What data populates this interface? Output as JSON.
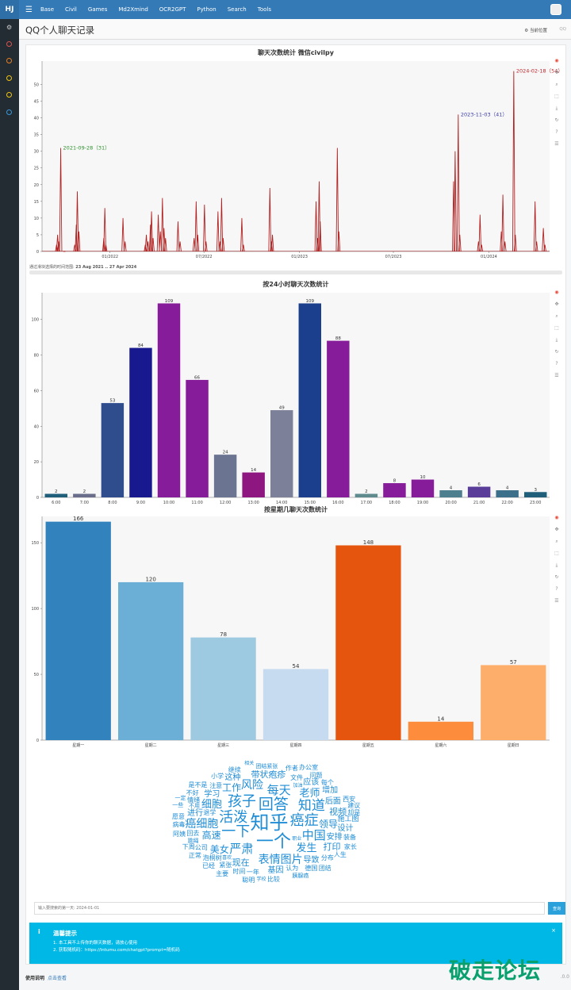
{
  "app": {
    "brand": "HJ",
    "menu_icon": "menu-icon",
    "nav": [
      "Base",
      "Civil",
      "Games",
      "Md2Xmind",
      "OCR2GPT",
      "Python",
      "Search",
      "Tools"
    ]
  },
  "page": {
    "title": "QQ个人聊天记录",
    "location": "当前位置",
    "location_extra": "QQ"
  },
  "colors": {
    "topbar": "#337ab7",
    "sidebar": "#232c33",
    "alert": "#00b8e6",
    "line": "#c23531"
  },
  "timeline": {
    "title": "聊天次数统计 微信civilpy",
    "brush_label": "通过滑块选择的时间范围:",
    "brush_range": "23 Aug 2021 .. 27 Apr 2024",
    "annotations": [
      "2021-09-28（31）",
      "2023-11-03（41）",
      "2024-02-18（54）"
    ]
  },
  "hourly": {
    "title": "按24小时聊天次数统计"
  },
  "weekday": {
    "title": "按星期几聊天次数统计"
  },
  "chart_data": [
    {
      "type": "line",
      "title": "聊天次数统计 微信civilpy",
      "x_ticks": [
        "01/2022",
        "07/2022",
        "01/2023",
        "07/2023",
        "01/2024"
      ],
      "ylim": [
        0,
        57
      ],
      "y_ticks": [
        0,
        5,
        10,
        15,
        20,
        25,
        30,
        35,
        40,
        45,
        50
      ],
      "x_range": [
        "2021-08-23",
        "2024-04-27"
      ],
      "points": [
        [
          "2021-09-20",
          2
        ],
        [
          "2021-09-22",
          5
        ],
        [
          "2021-09-24",
          3
        ],
        [
          "2021-09-28",
          31
        ],
        [
          "2021-10-05",
          0
        ],
        [
          "2021-10-25",
          2
        ],
        [
          "2021-10-28",
          8
        ],
        [
          "2021-10-30",
          18
        ],
        [
          "2021-11-02",
          6
        ],
        [
          "2021-12-20",
          4
        ],
        [
          "2021-12-22",
          13
        ],
        [
          "2021-12-24",
          2
        ],
        [
          "2022-01-26",
          10
        ],
        [
          "2022-01-30",
          3
        ],
        [
          "2022-03-10",
          2
        ],
        [
          "2022-03-12",
          5
        ],
        [
          "2022-03-15",
          3
        ],
        [
          "2022-03-20",
          8
        ],
        [
          "2022-03-22",
          12
        ],
        [
          "2022-03-25",
          4
        ],
        [
          "2022-04-04",
          11
        ],
        [
          "2022-04-08",
          6
        ],
        [
          "2022-04-12",
          16
        ],
        [
          "2022-04-15",
          7
        ],
        [
          "2022-04-18",
          4
        ],
        [
          "2022-05-12",
          9
        ],
        [
          "2022-05-16",
          3
        ],
        [
          "2022-06-12",
          4
        ],
        [
          "2022-06-16",
          15
        ],
        [
          "2022-06-19",
          5
        ],
        [
          "2022-07-02",
          14
        ],
        [
          "2022-07-05",
          3
        ],
        [
          "2022-07-28",
          12
        ],
        [
          "2022-08-01",
          3
        ],
        [
          "2022-08-04",
          16
        ],
        [
          "2022-08-07",
          4
        ],
        [
          "2022-09-12",
          10
        ],
        [
          "2022-09-15",
          2
        ],
        [
          "2022-11-05",
          19
        ],
        [
          "2022-11-08",
          3
        ],
        [
          "2022-11-10",
          5
        ],
        [
          "2023-02-02",
          15
        ],
        [
          "2023-02-05",
          4
        ],
        [
          "2023-02-08",
          21
        ],
        [
          "2023-02-10",
          9
        ],
        [
          "2023-03-15",
          31
        ],
        [
          "2023-03-18",
          6
        ],
        [
          "2023-10-25",
          21
        ],
        [
          "2023-10-28",
          30
        ],
        [
          "2023-11-03",
          41
        ],
        [
          "2023-11-06",
          5
        ],
        [
          "2023-12-12",
          3
        ],
        [
          "2023-12-15",
          11
        ],
        [
          "2023-12-18",
          2
        ],
        [
          "2024-01-25",
          6
        ],
        [
          "2024-01-28",
          17
        ],
        [
          "2024-02-01",
          3
        ],
        [
          "2024-02-18",
          54
        ],
        [
          "2024-02-21",
          5
        ],
        [
          "2024-03-30",
          15
        ],
        [
          "2024-04-02",
          3
        ],
        [
          "2024-04-15",
          7
        ],
        [
          "2024-04-18",
          2
        ]
      ]
    },
    {
      "type": "bar",
      "title": "按24小时聊天次数统计",
      "categories": [
        "6:00",
        "7:00",
        "8:00",
        "9:00",
        "10:00",
        "11:00",
        "12:00",
        "13:00",
        "14:00",
        "15:00",
        "16:00",
        "17:00",
        "18:00",
        "19:00",
        "20:00",
        "21:00",
        "22:00",
        "23:00"
      ],
      "values": [
        2,
        2,
        53,
        84,
        109,
        66,
        24,
        14,
        49,
        109,
        88,
        2,
        8,
        10,
        4,
        6,
        4,
        3
      ],
      "colors": [
        "#1f5f7a",
        "#6b6e8a",
        "#2f4d8d",
        "#18188f",
        "#861c9a",
        "#861c9a",
        "#6b7490",
        "#8d1681",
        "#7c8098",
        "#1b3f8d",
        "#861c9a",
        "#5f8a8e",
        "#861c9a",
        "#861c9a",
        "#4e7f8f",
        "#5a3d99",
        "#3b6f8a",
        "#1f5f7a"
      ],
      "ylim": [
        0,
        115
      ],
      "y_ticks": [
        0,
        20,
        40,
        60,
        80,
        100
      ]
    },
    {
      "type": "bar",
      "title": "按星期几聊天次数统计",
      "categories": [
        "星期一",
        "星期二",
        "星期三",
        "星期四",
        "星期五",
        "星期六",
        "星期日"
      ],
      "values": [
        166,
        120,
        78,
        54,
        148,
        14,
        57
      ],
      "colors": [
        "#3182bd",
        "#6baed6",
        "#9ecae1",
        "#c6dbef",
        "#e6550d",
        "#fd8d3c",
        "#fdae6b"
      ],
      "ylim": [
        0,
        170
      ],
      "y_ticks": [
        0,
        50,
        100,
        150
      ]
    }
  ],
  "toolbox": [
    "rainbow-icon",
    "move-icon",
    "zoom-icon",
    "select-icon",
    "save-icon",
    "reset-icon",
    "help-icon",
    "hover-icon"
  ],
  "wordcloud": {
    "words": [
      {
        "t": "知乎",
        "s": 24,
        "c": "#1f8dd6"
      },
      {
        "t": "一个",
        "s": 22,
        "c": "#1f8dd6"
      },
      {
        "t": "回答",
        "s": 19,
        "c": "#1f8dd6"
      },
      {
        "t": "癌症",
        "s": 18,
        "c": "#1f8dd6"
      },
      {
        "t": "一下",
        "s": 18,
        "c": "#1f8dd6"
      },
      {
        "t": "活泼",
        "s": 18,
        "c": "#1f8dd6"
      },
      {
        "t": "孩子",
        "s": 18,
        "c": "#1f8dd6"
      },
      {
        "t": "知道",
        "s": 17,
        "c": "#1f8dd6"
      },
      {
        "t": "中国",
        "s": 15,
        "c": "#1f8dd6"
      },
      {
        "t": "严肃",
        "s": 15,
        "c": "#1f8dd6"
      },
      {
        "t": "每天",
        "s": 15,
        "c": "#1f8dd6"
      },
      {
        "t": "表情图片",
        "s": 14,
        "c": "#1f8dd6"
      },
      {
        "t": "癌细胞",
        "s": 14,
        "c": "#1f8dd6"
      },
      {
        "t": "风险",
        "s": 14,
        "c": "#1f8dd6"
      },
      {
        "t": "老师",
        "s": 13,
        "c": "#1f8dd6"
      },
      {
        "t": "发生",
        "s": 13,
        "c": "#1f8dd6"
      },
      {
        "t": "细胞",
        "s": 13,
        "c": "#1f8dd6"
      },
      {
        "t": "领导",
        "s": 12,
        "c": "#1f8dd6"
      },
      {
        "t": "高速",
        "s": 12,
        "c": "#1f8dd6"
      },
      {
        "t": "美女",
        "s": 12,
        "c": "#1f8dd6"
      },
      {
        "t": "工作",
        "s": 12,
        "c": "#1f8dd6"
      },
      {
        "t": "现在",
        "s": 11,
        "c": "#1f8dd6"
      },
      {
        "t": "打印",
        "s": 11,
        "c": "#1f8dd6"
      },
      {
        "t": "带状疱疹",
        "s": 11,
        "c": "#1f8dd6"
      },
      {
        "t": "视频",
        "s": 11,
        "c": "#1f8dd6"
      },
      {
        "t": "应该",
        "s": 10,
        "c": "#1f8dd6"
      },
      {
        "t": "安排",
        "s": 10,
        "c": "#1f8dd6"
      },
      {
        "t": "学习",
        "s": 10,
        "c": "#1f8dd6"
      },
      {
        "t": "导致",
        "s": 10,
        "c": "#1f8dd6"
      },
      {
        "t": "后面",
        "s": 10,
        "c": "#1f8dd6"
      },
      {
        "t": "进行",
        "s": 10,
        "c": "#1f8dd6"
      },
      {
        "t": "设计",
        "s": 10,
        "c": "#1f8dd6"
      },
      {
        "t": "基因",
        "s": 10,
        "c": "#1f8dd6"
      },
      {
        "t": "这种",
        "s": 10,
        "c": "#1f8dd6"
      },
      {
        "t": "增加",
        "s": 10,
        "c": "#1f8dd6"
      },
      {
        "t": "施工图",
        "s": 9,
        "c": "#1f8dd6"
      },
      {
        "t": "泡桐树",
        "s": 8,
        "c": "#1f8dd6"
      },
      {
        "t": "文件",
        "s": 8,
        "c": "#1f8dd6"
      },
      {
        "t": "公司",
        "s": 8,
        "c": "#1f8dd6"
      },
      {
        "t": "回去",
        "s": 8,
        "c": "#1f8dd6"
      },
      {
        "t": "分布",
        "s": 8,
        "c": "#1f8dd6"
      },
      {
        "t": "一年",
        "s": 8,
        "c": "#1f8dd6"
      },
      {
        "t": "跳绳",
        "s": 7,
        "c": "#1f8dd6"
      },
      {
        "t": "装备",
        "s": 8,
        "c": "#1f8dd6"
      },
      {
        "t": "认为",
        "s": 8,
        "c": "#1f8dd6"
      },
      {
        "t": "时间",
        "s": 8,
        "c": "#1f8dd6"
      },
      {
        "t": "注意",
        "s": 8,
        "c": "#1f8dd6"
      },
      {
        "t": "情绪",
        "s": 8,
        "c": "#1f8dd6"
      },
      {
        "t": "紧张",
        "s": 8,
        "c": "#1f8dd6"
      },
      {
        "t": "德国",
        "s": 8,
        "c": "#1f8dd6"
      },
      {
        "t": "退学",
        "s": 8,
        "c": "#1f8dd6"
      },
      {
        "t": "西安",
        "s": 8,
        "c": "#1f8dd6"
      },
      {
        "t": "每个",
        "s": 8,
        "c": "#1f8dd6"
      },
      {
        "t": "却是",
        "s": 8,
        "c": "#1f8dd6"
      },
      {
        "t": "继续",
        "s": 8,
        "c": "#1f8dd6"
      },
      {
        "t": "作者",
        "s": 8,
        "c": "#1f8dd6"
      },
      {
        "t": "问题",
        "s": 8,
        "c": "#1f8dd6"
      },
      {
        "t": "是不是",
        "s": 8,
        "c": "#1f8dd6"
      },
      {
        "t": "人生",
        "s": 8,
        "c": "#1f8dd6"
      },
      {
        "t": "下周",
        "s": 8,
        "c": "#1f8dd6"
      },
      {
        "t": "不好",
        "s": 8,
        "c": "#1f8dd6"
      },
      {
        "t": "团结紧张",
        "s": 7,
        "c": "#1f8dd6"
      },
      {
        "t": "家长",
        "s": 8,
        "c": "#1f8dd6"
      },
      {
        "t": "建议",
        "s": 8,
        "c": "#1f8dd6"
      },
      {
        "t": "不用",
        "s": 7,
        "c": "#1f8dd6"
      },
      {
        "t": "病毒",
        "s": 8,
        "c": "#1f8dd6"
      },
      {
        "t": "小学",
        "s": 8,
        "c": "#1f8dd6"
      },
      {
        "t": "团结",
        "s": 8,
        "c": "#1f8dd6"
      },
      {
        "t": "胰腺癌",
        "s": 7,
        "c": "#1f8dd6"
      },
      {
        "t": "比较",
        "s": 8,
        "c": "#1f8dd6"
      },
      {
        "t": "正常",
        "s": 8,
        "c": "#1f8dd6"
      },
      {
        "t": "聪明",
        "s": 8,
        "c": "#1f8dd6"
      },
      {
        "t": "主要",
        "s": 8,
        "c": "#1f8dd6"
      },
      {
        "t": "一些",
        "s": 7,
        "c": "#1f8dd6"
      },
      {
        "t": "办公室",
        "s": 8,
        "c": "#1f8dd6"
      },
      {
        "t": "已经",
        "s": 8,
        "c": "#1f8dd6"
      },
      {
        "t": "阿姨",
        "s": 8,
        "c": "#1f8dd6"
      },
      {
        "t": "愿意",
        "s": 8,
        "c": "#1f8dd6"
      },
      {
        "t": "一定",
        "s": 7,
        "c": "#1f8dd6"
      },
      {
        "t": "加油",
        "s": 6,
        "c": "#1f8dd6"
      },
      {
        "t": "相关",
        "s": 6,
        "c": "#1f8dd6"
      },
      {
        "t": "学校",
        "s": 6,
        "c": "#1f8dd6"
      },
      {
        "t": "职业",
        "s": 6,
        "c": "#1f8dd6"
      },
      {
        "t": "喜欢",
        "s": 6,
        "c": "#1f8dd6"
      }
    ]
  },
  "search": {
    "placeholder": "输入要搜索的第一天: 2024-01-01",
    "button": "查询"
  },
  "alert": {
    "icon": "info-icon",
    "title": "温馨提示",
    "items": [
      "1. 本工具不上传你的聊天数据，请放心使用",
      "2. 获取随机码：https://intumu.com/chatgpt?prompt=随机码"
    ],
    "close": "×"
  },
  "footer": {
    "label": "使用说明",
    "link": "点击查看",
    "version": ".0.0"
  },
  "watermark": "破走论坛"
}
